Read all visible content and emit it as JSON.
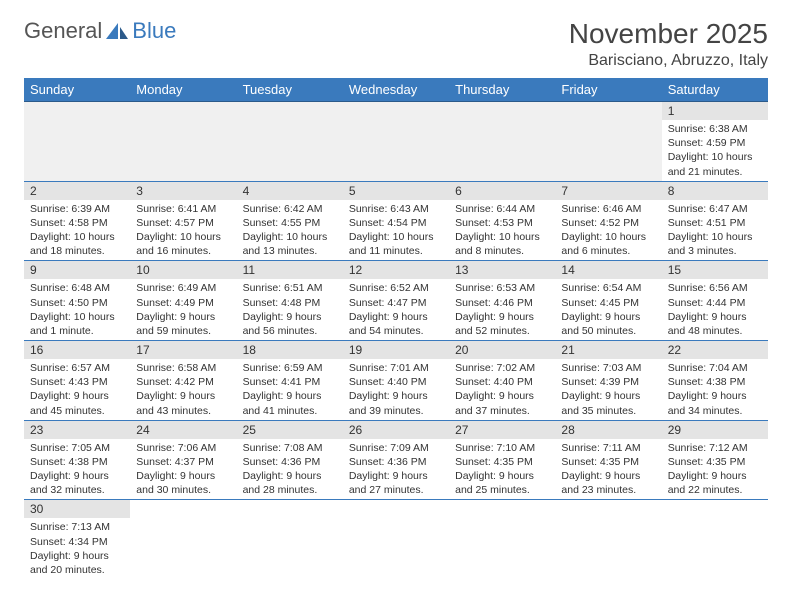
{
  "logo": {
    "text1": "General",
    "text2": "Blue"
  },
  "title": "November 2025",
  "location": "Barisciano, Abruzzo, Italy",
  "colors": {
    "headerBg": "#3a7abd",
    "headerText": "#ffffff",
    "dayNumBg": "#e4e4e4",
    "borderColor": "#3a7abd",
    "emptyBg": "#f0f0f0"
  },
  "dayNames": [
    "Sunday",
    "Monday",
    "Tuesday",
    "Wednesday",
    "Thursday",
    "Friday",
    "Saturday"
  ],
  "weeks": [
    [
      null,
      null,
      null,
      null,
      null,
      null,
      {
        "n": "1",
        "sr": "Sunrise: 6:38 AM",
        "ss": "Sunset: 4:59 PM",
        "dl": "Daylight: 10 hours and 21 minutes."
      }
    ],
    [
      {
        "n": "2",
        "sr": "Sunrise: 6:39 AM",
        "ss": "Sunset: 4:58 PM",
        "dl": "Daylight: 10 hours and 18 minutes."
      },
      {
        "n": "3",
        "sr": "Sunrise: 6:41 AM",
        "ss": "Sunset: 4:57 PM",
        "dl": "Daylight: 10 hours and 16 minutes."
      },
      {
        "n": "4",
        "sr": "Sunrise: 6:42 AM",
        "ss": "Sunset: 4:55 PM",
        "dl": "Daylight: 10 hours and 13 minutes."
      },
      {
        "n": "5",
        "sr": "Sunrise: 6:43 AM",
        "ss": "Sunset: 4:54 PM",
        "dl": "Daylight: 10 hours and 11 minutes."
      },
      {
        "n": "6",
        "sr": "Sunrise: 6:44 AM",
        "ss": "Sunset: 4:53 PM",
        "dl": "Daylight: 10 hours and 8 minutes."
      },
      {
        "n": "7",
        "sr": "Sunrise: 6:46 AM",
        "ss": "Sunset: 4:52 PM",
        "dl": "Daylight: 10 hours and 6 minutes."
      },
      {
        "n": "8",
        "sr": "Sunrise: 6:47 AM",
        "ss": "Sunset: 4:51 PM",
        "dl": "Daylight: 10 hours and 3 minutes."
      }
    ],
    [
      {
        "n": "9",
        "sr": "Sunrise: 6:48 AM",
        "ss": "Sunset: 4:50 PM",
        "dl": "Daylight: 10 hours and 1 minute."
      },
      {
        "n": "10",
        "sr": "Sunrise: 6:49 AM",
        "ss": "Sunset: 4:49 PM",
        "dl": "Daylight: 9 hours and 59 minutes."
      },
      {
        "n": "11",
        "sr": "Sunrise: 6:51 AM",
        "ss": "Sunset: 4:48 PM",
        "dl": "Daylight: 9 hours and 56 minutes."
      },
      {
        "n": "12",
        "sr": "Sunrise: 6:52 AM",
        "ss": "Sunset: 4:47 PM",
        "dl": "Daylight: 9 hours and 54 minutes."
      },
      {
        "n": "13",
        "sr": "Sunrise: 6:53 AM",
        "ss": "Sunset: 4:46 PM",
        "dl": "Daylight: 9 hours and 52 minutes."
      },
      {
        "n": "14",
        "sr": "Sunrise: 6:54 AM",
        "ss": "Sunset: 4:45 PM",
        "dl": "Daylight: 9 hours and 50 minutes."
      },
      {
        "n": "15",
        "sr": "Sunrise: 6:56 AM",
        "ss": "Sunset: 4:44 PM",
        "dl": "Daylight: 9 hours and 48 minutes."
      }
    ],
    [
      {
        "n": "16",
        "sr": "Sunrise: 6:57 AM",
        "ss": "Sunset: 4:43 PM",
        "dl": "Daylight: 9 hours and 45 minutes."
      },
      {
        "n": "17",
        "sr": "Sunrise: 6:58 AM",
        "ss": "Sunset: 4:42 PM",
        "dl": "Daylight: 9 hours and 43 minutes."
      },
      {
        "n": "18",
        "sr": "Sunrise: 6:59 AM",
        "ss": "Sunset: 4:41 PM",
        "dl": "Daylight: 9 hours and 41 minutes."
      },
      {
        "n": "19",
        "sr": "Sunrise: 7:01 AM",
        "ss": "Sunset: 4:40 PM",
        "dl": "Daylight: 9 hours and 39 minutes."
      },
      {
        "n": "20",
        "sr": "Sunrise: 7:02 AM",
        "ss": "Sunset: 4:40 PM",
        "dl": "Daylight: 9 hours and 37 minutes."
      },
      {
        "n": "21",
        "sr": "Sunrise: 7:03 AM",
        "ss": "Sunset: 4:39 PM",
        "dl": "Daylight: 9 hours and 35 minutes."
      },
      {
        "n": "22",
        "sr": "Sunrise: 7:04 AM",
        "ss": "Sunset: 4:38 PM",
        "dl": "Daylight: 9 hours and 34 minutes."
      }
    ],
    [
      {
        "n": "23",
        "sr": "Sunrise: 7:05 AM",
        "ss": "Sunset: 4:38 PM",
        "dl": "Daylight: 9 hours and 32 minutes."
      },
      {
        "n": "24",
        "sr": "Sunrise: 7:06 AM",
        "ss": "Sunset: 4:37 PM",
        "dl": "Daylight: 9 hours and 30 minutes."
      },
      {
        "n": "25",
        "sr": "Sunrise: 7:08 AM",
        "ss": "Sunset: 4:36 PM",
        "dl": "Daylight: 9 hours and 28 minutes."
      },
      {
        "n": "26",
        "sr": "Sunrise: 7:09 AM",
        "ss": "Sunset: 4:36 PM",
        "dl": "Daylight: 9 hours and 27 minutes."
      },
      {
        "n": "27",
        "sr": "Sunrise: 7:10 AM",
        "ss": "Sunset: 4:35 PM",
        "dl": "Daylight: 9 hours and 25 minutes."
      },
      {
        "n": "28",
        "sr": "Sunrise: 7:11 AM",
        "ss": "Sunset: 4:35 PM",
        "dl": "Daylight: 9 hours and 23 minutes."
      },
      {
        "n": "29",
        "sr": "Sunrise: 7:12 AM",
        "ss": "Sunset: 4:35 PM",
        "dl": "Daylight: 9 hours and 22 minutes."
      }
    ],
    [
      {
        "n": "30",
        "sr": "Sunrise: 7:13 AM",
        "ss": "Sunset: 4:34 PM",
        "dl": "Daylight: 9 hours and 20 minutes."
      },
      null,
      null,
      null,
      null,
      null,
      null
    ]
  ]
}
